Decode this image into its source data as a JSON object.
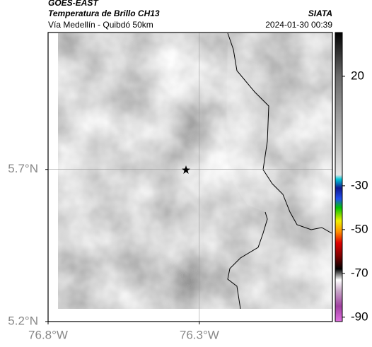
{
  "chart_data": {
    "type": "map",
    "title": "GOES-EAST",
    "subtitle": "Temperatura de Brillo CH13",
    "route": "Vía Medellín - Quibdó 50km",
    "source": "SIATA",
    "timestamp": "2024-01-30 00:39",
    "xlim": [
      -76.8,
      -75.86
    ],
    "ylim": [
      5.2,
      6.15
    ],
    "xticks": [
      {
        "value": -76.8,
        "label": "76.8°W"
      },
      {
        "value": -76.3,
        "label": "76.3°W"
      }
    ],
    "yticks": [
      {
        "value": 5.2,
        "label": "5.2°N"
      },
      {
        "value": 5.7,
        "label": "5.7°N"
      }
    ],
    "grid": true,
    "clim": [
      -92,
      40
    ],
    "cticks": [
      20,
      -30,
      -50,
      -70,
      -90
    ],
    "colormap": [
      {
        "value": 40,
        "color": "#000000"
      },
      {
        "value": 20,
        "color": "#6a6a6a"
      },
      {
        "value": -25,
        "color": "#e6e6e6"
      },
      {
        "value": -27,
        "color": "#00c8d8"
      },
      {
        "value": -31,
        "color": "#101890"
      },
      {
        "value": -36,
        "color": "#2050f0"
      },
      {
        "value": -40,
        "color": "#00c000"
      },
      {
        "value": -46,
        "color": "#f0f000"
      },
      {
        "value": -51,
        "color": "#ff9000"
      },
      {
        "value": -56,
        "color": "#e00000"
      },
      {
        "value": -62,
        "color": "#800000"
      },
      {
        "value": -68,
        "color": "#000000"
      },
      {
        "value": -73,
        "color": "#ffffff"
      },
      {
        "value": -78,
        "color": "#c8a8c8"
      },
      {
        "value": -85,
        "color": "#a040a0"
      },
      {
        "value": -92,
        "color": "#e070e0"
      }
    ]
  }
}
